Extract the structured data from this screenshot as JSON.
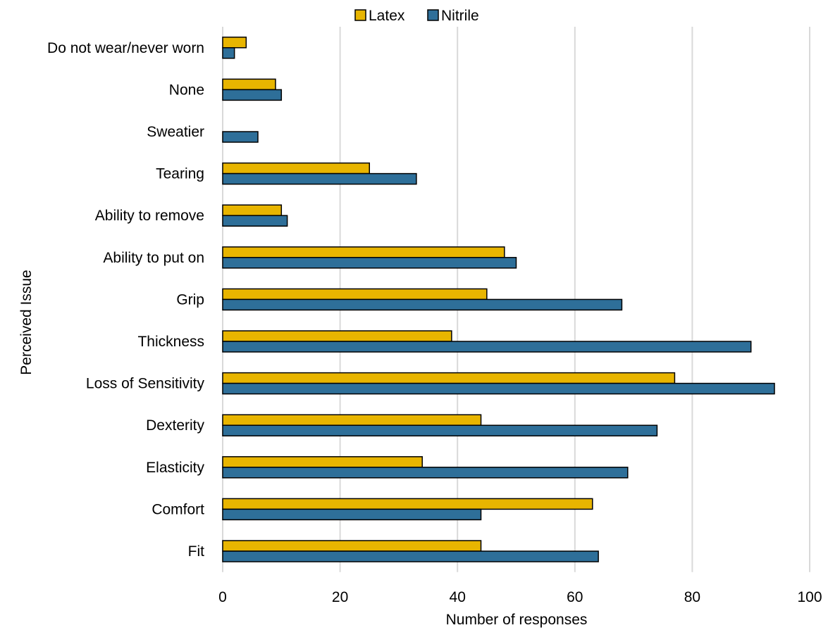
{
  "chart_data": {
    "type": "bar",
    "orientation": "horizontal",
    "categories": [
      "Do not wear/never worn",
      "None",
      "Sweatier",
      "Tearing",
      "Ability to remove",
      "Ability to put on",
      "Grip",
      "Thickness",
      "Loss of Sensitivity",
      "Dexterity",
      "Elasticity",
      "Comfort",
      "Fit"
    ],
    "series": [
      {
        "name": "Latex",
        "color": "#e8b500",
        "values": [
          4,
          9,
          0,
          25,
          10,
          48,
          45,
          39,
          77,
          44,
          34,
          63,
          44
        ]
      },
      {
        "name": "Nitrile",
        "color": "#2e6f99",
        "values": [
          2,
          10,
          6,
          33,
          11,
          50,
          68,
          90,
          94,
          74,
          69,
          44,
          64
        ]
      }
    ],
    "xlabel": "Number of responses",
    "ylabel": "Perceived Issue",
    "xlim": [
      0,
      100
    ],
    "xticks": [
      0,
      20,
      40,
      60,
      80,
      100
    ],
    "grid": "vertical",
    "legend_position": "top-center"
  }
}
